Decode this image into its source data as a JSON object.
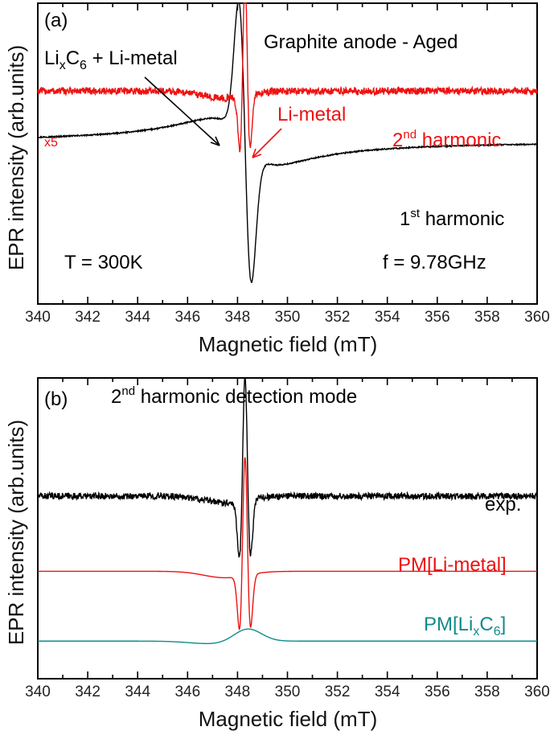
{
  "chart_data": [
    {
      "type": "line",
      "panel_label": "(a)",
      "title": "Graphite anode - Aged",
      "xlabel": "Magnetic field (mT)",
      "ylabel": "EPR intensity (arb.units)",
      "xlim": [
        340,
        360
      ],
      "ylim": [
        -1.35,
        1.15
      ],
      "x_ticks": [
        340,
        342,
        344,
        346,
        348,
        350,
        352,
        354,
        356,
        358,
        360
      ],
      "series": [
        {
          "name": "1st harmonic",
          "color": "#000000",
          "kind": "first_derivative",
          "center": 348.3,
          "width": 0.25,
          "amplitude": 1.1,
          "broad_amplitude": 0.45,
          "broad_width": 1.6,
          "noise": 0.005
        },
        {
          "name": "2nd harmonic",
          "color": "#ee1111",
          "kind": "second_derivative",
          "center": 348.3,
          "width": 0.12,
          "amplitude": 1.0,
          "offset": 0.42,
          "noise": 0.03,
          "scale_note": "x5"
        }
      ],
      "annotations": {
        "lixc6_base": "Li",
        "lixc6_sub_x": "x",
        "lixc6_c": "C",
        "lixc6_sub_6": "6",
        "lixc6_rest": " + Li-metal",
        "li_metal": "Li-metal",
        "scale": "x5",
        "second_num": "2",
        "second_sup": "nd",
        "second_rest": " harmonic",
        "first_num": "1",
        "first_sup": "st",
        "first_rest": " harmonic",
        "temperature": "T = 300K",
        "frequency": "f = 9.78GHz"
      }
    },
    {
      "type": "line",
      "panel_label": "(b)",
      "title_num": "2",
      "title_sup": "nd",
      "title_rest": " harmonic detection mode",
      "xlabel": "Magnetic field (mT)",
      "ylabel": "EPR intensity (arb.units)",
      "xlim": [
        340,
        360
      ],
      "ylim": [
        -1.4,
        1.4
      ],
      "x_ticks": [
        340,
        342,
        344,
        346,
        348,
        350,
        352,
        354,
        356,
        358,
        360
      ],
      "series": [
        {
          "name": "exp.",
          "color": "#000000",
          "kind": "second_derivative",
          "center": 348.3,
          "width": 0.13,
          "amplitude": 1.15,
          "offset": 0.3,
          "noise": 0.03
        },
        {
          "name": "PM[Li-metal]",
          "color": "#ee1111",
          "kind": "second_derivative",
          "center": 348.3,
          "width": 0.13,
          "amplitude": 1.1,
          "offset": -0.4,
          "noise": 0
        },
        {
          "name": "PM[LixC6]",
          "color": "#118b8b",
          "kind": "gauss_bump",
          "center": 348.4,
          "width": 0.55,
          "amplitude": 0.12,
          "offset": -1.05,
          "noise": 0
        }
      ],
      "annotations": {
        "exp": "exp.",
        "pm_li_metal": "PM[Li-metal]",
        "pm_lixc6_pre": "PM[Li",
        "pm_lixc6_sub_x": "x",
        "pm_lixc6_c": "C",
        "pm_lixc6_sub_6": "6",
        "pm_lixc6_post": "]"
      }
    }
  ]
}
